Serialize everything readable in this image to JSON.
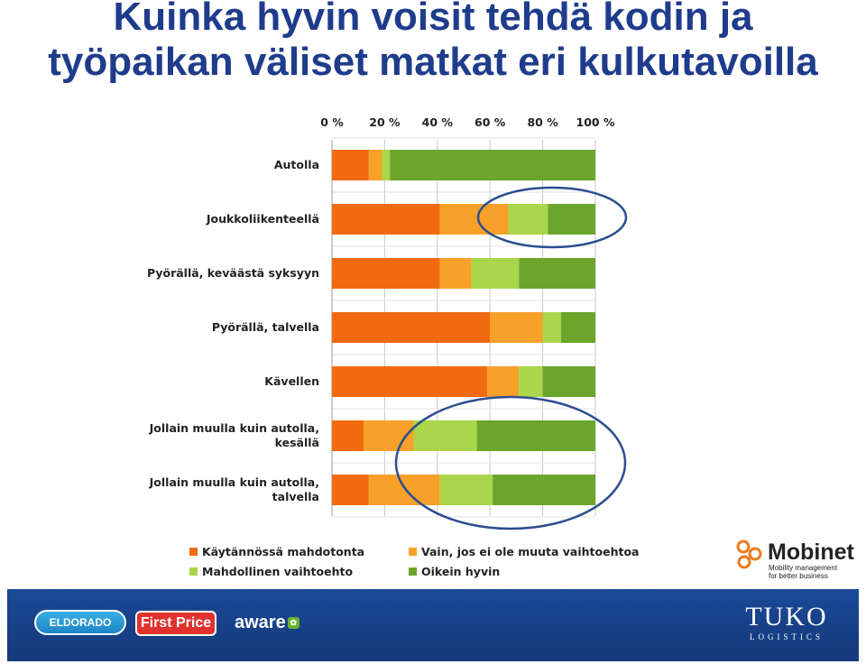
{
  "title": {
    "line1": "Kuinka hyvin voisit tehdä kodin ja",
    "line2": "työpaikan väliset matkat eri kulkutavoilla"
  },
  "chart_data": {
    "type": "bar",
    "orientation": "horizontal",
    "stacked": "percent",
    "categories": [
      [
        "Autolla"
      ],
      [
        "Joukkoliikenteellä"
      ],
      [
        "Pyörällä, keväästä syksyyn"
      ],
      [
        "Pyörällä, talvella"
      ],
      [
        "Kävellen"
      ],
      [
        "Jollain muulla kuin autolla,",
        "kesällä"
      ],
      [
        "Jollain muulla kuin autolla,",
        "talvella"
      ]
    ],
    "series": [
      {
        "name": "Käytännössä mahdotonta",
        "color": "#f26a10",
        "values": [
          14,
          41,
          41,
          60,
          59,
          12,
          14
        ]
      },
      {
        "name": "Vain, jos ei ole muuta vaihtoehtoa",
        "color": "#f7a02a",
        "values": [
          5,
          26,
          12,
          20,
          12,
          19,
          27
        ]
      },
      {
        "name": "Mahdollinen vaihtoehto",
        "color": "#a9d64a",
        "values": [
          3,
          15,
          18,
          7,
          9,
          24,
          20
        ]
      },
      {
        "name": "Oikein hyvin",
        "color": "#6ba52c",
        "values": [
          78,
          18,
          29,
          13,
          20,
          45,
          39
        ]
      }
    ],
    "x_ticks": [
      "0 %",
      "20 %",
      "40 %",
      "60 %",
      "80 %",
      "100 %"
    ],
    "xlim": [
      0,
      100
    ],
    "axis_position": "top",
    "grid": true,
    "legend_position": "bottom",
    "annotations": [
      "ellipse around Joukkoliikenteellä green segments",
      "ellipse around last two rows"
    ]
  },
  "colors": {
    "title": "#1f3c8c",
    "footer": "#173f86",
    "ellipse": "#2b4f8e"
  },
  "logos": {
    "mobinet": {
      "name": "Mobinet",
      "tagline1": "Mobility management",
      "tagline2": "for better business"
    },
    "eldorado": "ELDORADO",
    "firstprice": "First Price",
    "aware": "aware",
    "tuko": {
      "name": "TUKO",
      "sub": "LOGISTICS"
    }
  }
}
